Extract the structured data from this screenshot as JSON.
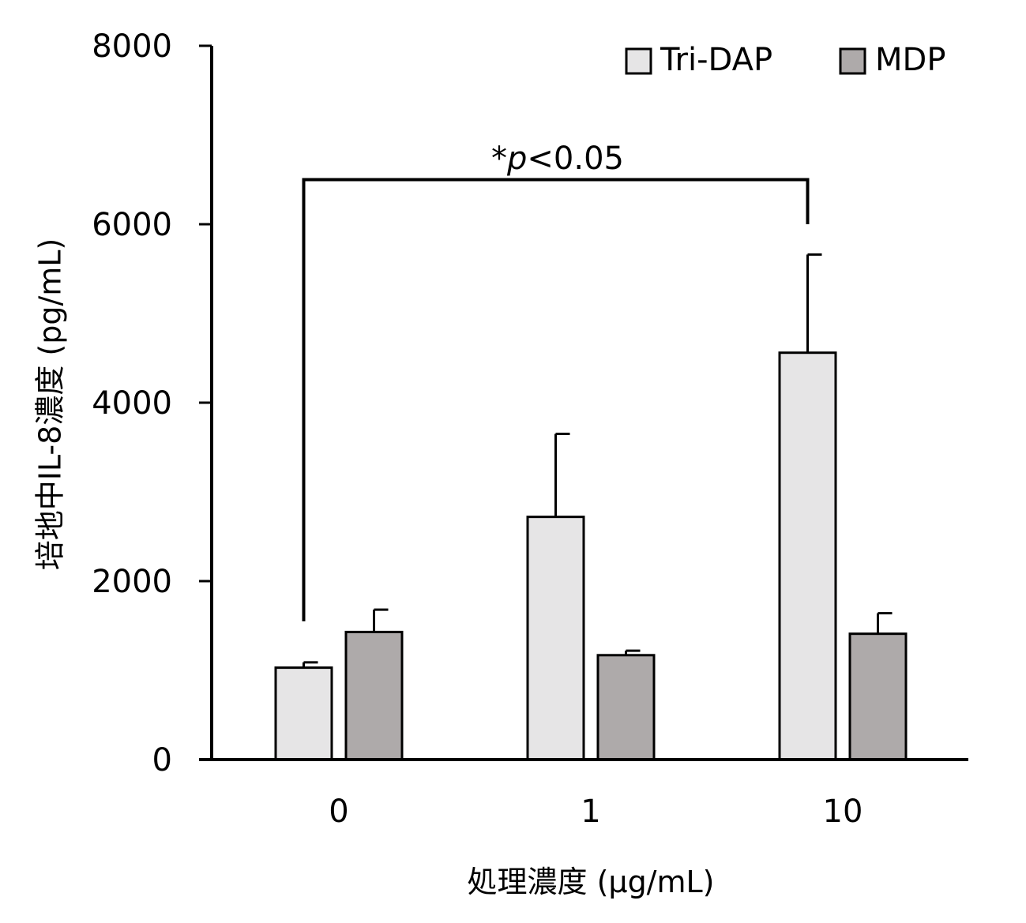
{
  "chart_data": {
    "type": "bar",
    "title": "",
    "xlabel": "処理濃度 (µg/mL)",
    "ylabel": "培地中IL-8濃度 (pg/mL)",
    "categories": [
      "0",
      "1",
      "10"
    ],
    "ylim": [
      0,
      8000
    ],
    "yticks": [
      0,
      2000,
      4000,
      6000,
      8000
    ],
    "grid": false,
    "legend_position": "top-right",
    "series": [
      {
        "name": "Tri-DAP",
        "color": "#e6e5e6",
        "values": [
          1030,
          2720,
          4560
        ],
        "errors": [
          60,
          930,
          1100
        ]
      },
      {
        "name": "MDP",
        "color": "#aeaaaa",
        "values": [
          1430,
          1170,
          1410
        ],
        "errors": [
          250,
          50,
          230
        ]
      }
    ],
    "annotation": {
      "prefix": "*",
      "p_symbol": "p",
      "suffix": "<0.05",
      "from_category": "0",
      "to_category": "10",
      "bracket_y": 6500,
      "left_end": 1550,
      "right_end": 6000
    }
  }
}
